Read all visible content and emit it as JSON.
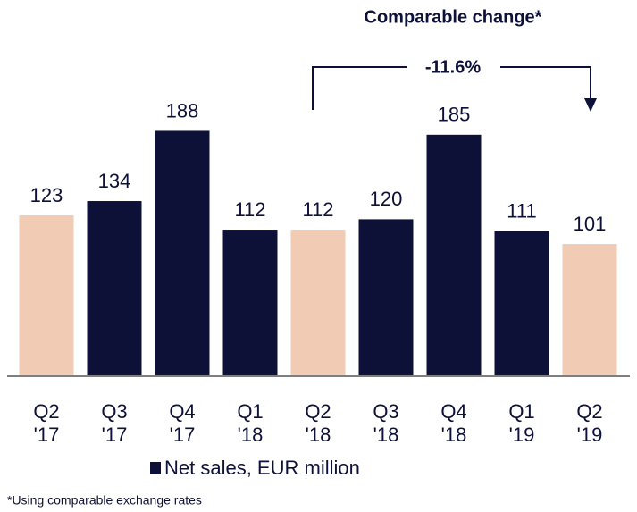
{
  "chart_data": {
    "type": "bar",
    "title": "Comparable change*",
    "annotation": "-11.6%",
    "categories": [
      [
        "Q2",
        "'17"
      ],
      [
        "Q3",
        "'17"
      ],
      [
        "Q4",
        "'17"
      ],
      [
        "Q1",
        "'18"
      ],
      [
        "Q2",
        "'18"
      ],
      [
        "Q3",
        "'18"
      ],
      [
        "Q4",
        "'18"
      ],
      [
        "Q1",
        "'19"
      ],
      [
        "Q2",
        "'19"
      ]
    ],
    "values": [
      123,
      134,
      188,
      112,
      112,
      120,
      185,
      111,
      101
    ],
    "colors": [
      "#f2cbb5",
      "#0d1138",
      "#0d1138",
      "#0d1138",
      "#f2cbb5",
      "#0d1138",
      "#0d1138",
      "#0d1138",
      "#f2cbb5"
    ],
    "legend": {
      "name": "Net sales, EUR million",
      "color": "#0d1138"
    },
    "ylim": [
      0,
      200
    ],
    "footnote": "*Using comparable exchange rates"
  }
}
